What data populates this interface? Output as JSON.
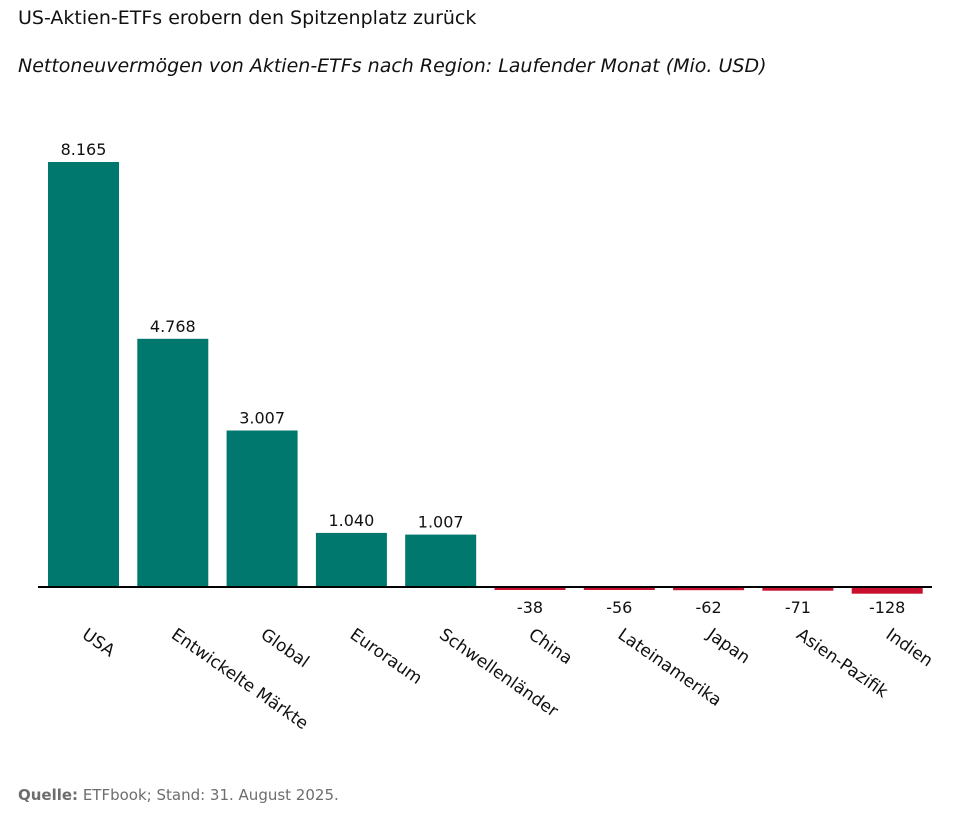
{
  "title": "US-Aktien-ETFs erobern den Spitzenplatz zurück",
  "subtitle": "Nettoneuvermögen von Aktien-ETFs nach Region: Laufender Monat (Mio. USD)",
  "source": {
    "label": "Quelle:",
    "text": " ETFbook; Stand: 31. August 2025."
  },
  "colors": {
    "positive": "#00786e",
    "negative": "#c8102e",
    "axis": "#000000",
    "text": "#111111"
  },
  "chart_data": {
    "type": "bar",
    "categories": [
      "USA",
      "Entwickelte Märkte",
      "Global",
      "Euroraum",
      "Schwellenländer",
      "China",
      "Lateinamerika",
      "Japan",
      "Asien-Pazifik",
      "Indien"
    ],
    "values": [
      8165,
      4768,
      3007,
      1040,
      1007,
      -38,
      -56,
      -62,
      -71,
      -128
    ],
    "value_labels": [
      "8.165",
      "4.768",
      "3.007",
      "1.040",
      "1.007",
      "-38",
      "-56",
      "-62",
      "-71",
      "-128"
    ],
    "grid": false,
    "legend": "none"
  }
}
